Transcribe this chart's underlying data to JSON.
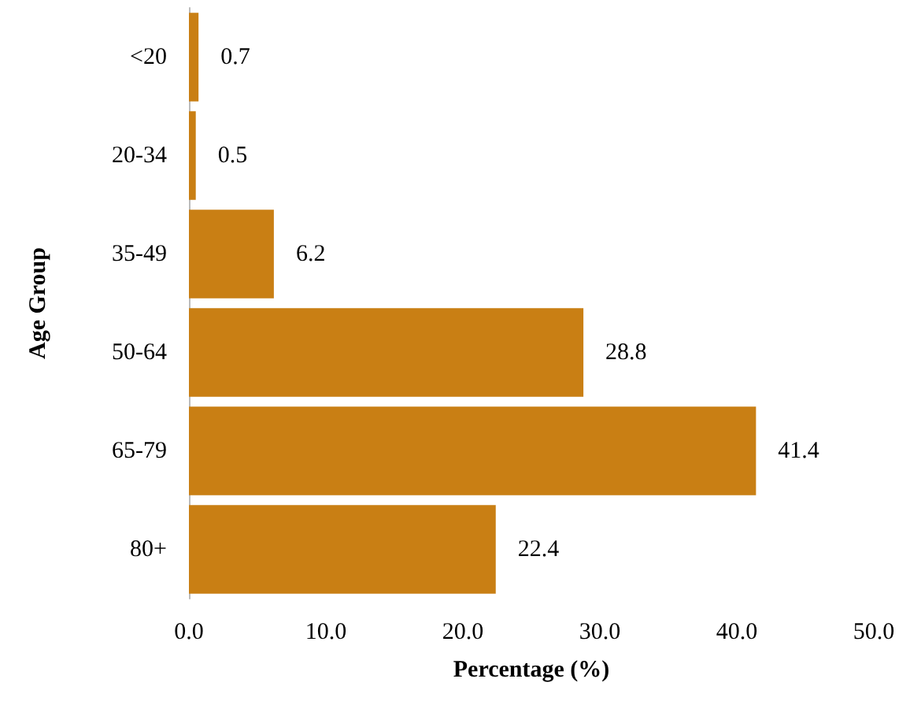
{
  "chart_data": {
    "type": "bar",
    "orientation": "horizontal",
    "xlabel": "Percentage (%)",
    "ylabel": "Age Group",
    "categories": [
      "<20",
      "20-34",
      "35-49",
      "50-64",
      "65-79",
      "80+"
    ],
    "values": [
      0.7,
      0.5,
      6.2,
      28.8,
      41.4,
      22.4
    ],
    "color": "#c97f14",
    "data_labels": true,
    "xlim": [
      0,
      50
    ],
    "xticks": [
      {
        "value": 0,
        "label": "0.0"
      },
      {
        "value": 10,
        "label": "10.0"
      },
      {
        "value": 20,
        "label": "20.0"
      },
      {
        "value": 30,
        "label": "30.0"
      },
      {
        "value": 40,
        "label": "40.0"
      },
      {
        "value": 50,
        "label": "50.0"
      }
    ],
    "grid": false
  }
}
